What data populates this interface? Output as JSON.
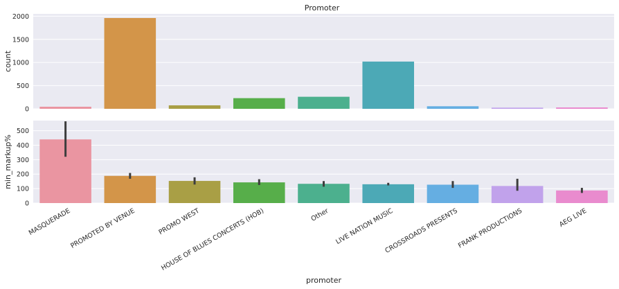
{
  "chart_data": [
    {
      "type": "bar",
      "title": "Promoter",
      "xlabel": "",
      "ylabel": "count",
      "categories": [
        "MASQUERADE",
        "PROMOTED BY VENUE",
        "PROMO WEST",
        "HOUSE OF BLUES CONCERTS (HOB)",
        "Other",
        "LIVE NATION MUSIC",
        "CROSSROADS PRESENTS",
        "FRANK PRODUCTIONS",
        "AEG LIVE"
      ],
      "values": [
        45,
        1960,
        75,
        230,
        260,
        1020,
        55,
        25,
        30
      ],
      "ylim": [
        0,
        2050
      ],
      "yticks": [
        0,
        500,
        1000,
        1500,
        2000
      ],
      "grid": true
    },
    {
      "type": "bar",
      "title": "",
      "xlabel": "promoter",
      "ylabel": "min_markup%",
      "categories": [
        "MASQUERADE",
        "PROMOTED BY VENUE",
        "PROMO WEST",
        "HOUSE OF BLUES CONCERTS (HOB)",
        "Other",
        "LIVE NATION MUSIC",
        "CROSSROADS PRESENTS",
        "FRANK PRODUCTIONS",
        "AEG LIVE"
      ],
      "values": [
        440,
        188,
        153,
        143,
        133,
        130,
        127,
        118,
        87
      ],
      "error_low": [
        320,
        168,
        128,
        125,
        113,
        122,
        105,
        85,
        70
      ],
      "error_high": [
        565,
        208,
        178,
        165,
        152,
        140,
        152,
        168,
        105
      ],
      "ylim": [
        0,
        570
      ],
      "yticks": [
        0,
        100,
        200,
        300,
        400,
        500
      ],
      "grid": true
    }
  ],
  "colors": [
    "#ea95a1",
    "#d39549",
    "#a99f45",
    "#57ae4a",
    "#4cb08e",
    "#4ca9b6",
    "#65aee2",
    "#c1a2eb",
    "#e98bce"
  ],
  "axes_background": "#eaeaf2"
}
